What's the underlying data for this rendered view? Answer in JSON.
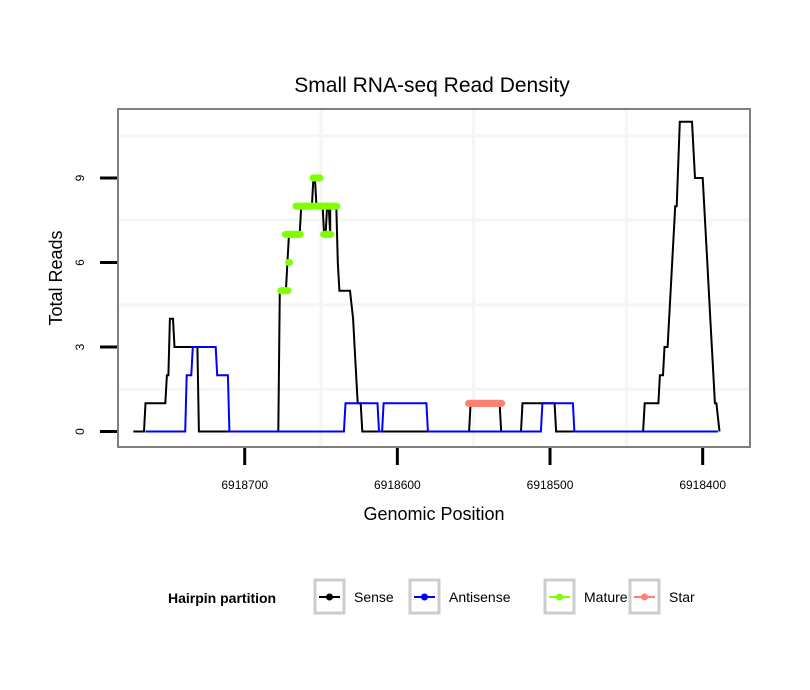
{
  "chart_data": {
    "type": "line",
    "title": "Small RNA-seq Read Density",
    "xlabel": "Genomic Position",
    "ylabel": "Total Reads",
    "x_reversed": true,
    "xlim": [
      6918783,
      6918369
    ],
    "ylim": [
      -0.55,
      11.45
    ],
    "x_ticks": [
      6918700,
      6918600,
      6918500,
      6918400
    ],
    "x_tick_labels": [
      "6918700",
      "6918600",
      "6918500",
      "6918400"
    ],
    "y_ticks": [
      0,
      3,
      6,
      9
    ],
    "y_tick_labels": [
      "0",
      "3",
      "6",
      "9"
    ],
    "x_minor_grid": [
      6918650,
      6918550,
      6918450
    ],
    "y_minor_grid": [
      1.5,
      4.5,
      7.5,
      10.5
    ],
    "grid": true,
    "legend": {
      "title": "Hairpin partition",
      "position": "bottom",
      "entries": [
        {
          "label": "Sense",
          "color": "#000000"
        },
        {
          "label": "Antisense",
          "color": "#0000ff"
        },
        {
          "label": "Mature",
          "color": "#7fff00"
        },
        {
          "label": "Star",
          "color": "#fa8072"
        }
      ]
    },
    "series": [
      {
        "name": "Sense",
        "color": "#000000",
        "style": "line",
        "points": [
          [
            6918773,
            0
          ],
          [
            6918766,
            0
          ],
          [
            6918765,
            1
          ],
          [
            6918752,
            1
          ],
          [
            6918751,
            2
          ],
          [
            6918750,
            2
          ],
          [
            6918749,
            4
          ],
          [
            6918747,
            4
          ],
          [
            6918746,
            3
          ],
          [
            6918731,
            3
          ],
          [
            6918730,
            0
          ],
          [
            6918678,
            0
          ],
          [
            6918677,
            5
          ],
          [
            6918673,
            5
          ],
          [
            6918672,
            6
          ],
          [
            6918671,
            7
          ],
          [
            6918664,
            7
          ],
          [
            6918663,
            8
          ],
          [
            6918656,
            8
          ],
          [
            6918655,
            9
          ],
          [
            6918654,
            9
          ],
          [
            6918653,
            8
          ],
          [
            6918649,
            8
          ],
          [
            6918648,
            7
          ],
          [
            6918647,
            7
          ],
          [
            6918646,
            8
          ],
          [
            6918645,
            8
          ],
          [
            6918644,
            7
          ],
          [
            6918644,
            8
          ],
          [
            6918640,
            8
          ],
          [
            6918639,
            6
          ],
          [
            6918638,
            5
          ],
          [
            6918631,
            5
          ],
          [
            6918629,
            4
          ],
          [
            6918628,
            3
          ],
          [
            6918626,
            1
          ],
          [
            6918624,
            1
          ],
          [
            6918623,
            0
          ],
          [
            6918553,
            0
          ],
          [
            6918552,
            1
          ],
          [
            6918533,
            1
          ],
          [
            6918532,
            0
          ],
          [
            6918519,
            0
          ],
          [
            6918518,
            1
          ],
          [
            6918497,
            1
          ],
          [
            6918496,
            0
          ],
          [
            6918439,
            0
          ],
          [
            6918438,
            1
          ],
          [
            6918429,
            1
          ],
          [
            6918428,
            2
          ],
          [
            6918426,
            2
          ],
          [
            6918425,
            3
          ],
          [
            6918423,
            3
          ],
          [
            6918419,
            7
          ],
          [
            6918418,
            8
          ],
          [
            6918417,
            8
          ],
          [
            6918415,
            11
          ],
          [
            6918407,
            11
          ],
          [
            6918405,
            9
          ],
          [
            6918400,
            9
          ],
          [
            6918397,
            6
          ],
          [
            6918395,
            4
          ],
          [
            6918393,
            2
          ],
          [
            6918392,
            1
          ],
          [
            6918391,
            1
          ],
          [
            6918389,
            0
          ]
        ]
      },
      {
        "name": "Antisense",
        "color": "#0000ff",
        "style": "line",
        "points": [
          [
            6918765,
            0
          ],
          [
            6918739,
            0
          ],
          [
            6918738,
            2
          ],
          [
            6918735,
            2
          ],
          [
            6918734,
            3
          ],
          [
            6918719,
            3
          ],
          [
            6918718,
            2
          ],
          [
            6918711,
            2
          ],
          [
            6918710,
            0
          ],
          [
            6918635,
            0
          ],
          [
            6918634,
            1
          ],
          [
            6918613,
            1
          ],
          [
            6918612,
            0
          ],
          [
            6918610,
            0
          ],
          [
            6918609,
            1
          ],
          [
            6918581,
            1
          ],
          [
            6918580,
            0
          ],
          [
            6918506,
            0
          ],
          [
            6918505,
            1
          ],
          [
            6918485,
            1
          ],
          [
            6918484,
            0
          ],
          [
            6918390,
            0
          ]
        ]
      },
      {
        "name": "Mature",
        "color": "#7fff00",
        "style": "points",
        "points": [
          [
            6918676,
            5
          ],
          [
            6918675,
            5
          ],
          [
            6918674,
            5
          ],
          [
            6918673,
            5
          ],
          [
            6918672,
            5
          ],
          [
            6918671,
            6
          ],
          [
            6918673,
            7
          ],
          [
            6918672,
            7
          ],
          [
            6918671,
            7
          ],
          [
            6918670,
            7
          ],
          [
            6918669,
            7
          ],
          [
            6918668,
            7
          ],
          [
            6918667,
            7
          ],
          [
            6918666,
            7
          ],
          [
            6918665,
            7
          ],
          [
            6918664,
            7
          ],
          [
            6918666,
            8
          ],
          [
            6918665,
            8
          ],
          [
            6918664,
            8
          ],
          [
            6918663,
            8
          ],
          [
            6918662,
            8
          ],
          [
            6918661,
            8
          ],
          [
            6918660,
            8
          ],
          [
            6918659,
            8
          ],
          [
            6918658,
            8
          ],
          [
            6918657,
            8
          ],
          [
            6918656,
            8
          ],
          [
            6918655,
            9
          ],
          [
            6918654,
            9
          ],
          [
            6918653,
            9
          ],
          [
            6918652,
            9
          ],
          [
            6918651,
            9
          ],
          [
            6918653,
            8
          ],
          [
            6918652,
            8
          ],
          [
            6918651,
            8
          ],
          [
            6918650,
            8
          ],
          [
            6918649,
            8
          ],
          [
            6918648,
            8
          ],
          [
            6918647,
            8
          ],
          [
            6918646,
            8
          ],
          [
            6918645,
            8
          ],
          [
            6918644,
            8
          ],
          [
            6918643,
            8
          ],
          [
            6918642,
            8
          ],
          [
            6918641,
            8
          ],
          [
            6918640,
            8
          ],
          [
            6918648,
            7
          ],
          [
            6918647,
            7
          ],
          [
            6918646,
            7
          ],
          [
            6918645,
            7
          ],
          [
            6918644,
            7
          ]
        ]
      },
      {
        "name": "Star",
        "color": "#fa8072",
        "style": "points",
        "points": [
          [
            6918553,
            1
          ],
          [
            6918552,
            1
          ],
          [
            6918551,
            1
          ],
          [
            6918550,
            1
          ],
          [
            6918549,
            1
          ],
          [
            6918548,
            1
          ],
          [
            6918547,
            1
          ],
          [
            6918546,
            1
          ],
          [
            6918545,
            1
          ],
          [
            6918544,
            1
          ],
          [
            6918543,
            1
          ],
          [
            6918542,
            1
          ],
          [
            6918541,
            1
          ],
          [
            6918540,
            1
          ],
          [
            6918539,
            1
          ],
          [
            6918538,
            1
          ],
          [
            6918537,
            1
          ],
          [
            6918536,
            1
          ],
          [
            6918535,
            1
          ],
          [
            6918534,
            1
          ],
          [
            6918533,
            1
          ],
          [
            6918532,
            1
          ]
        ]
      }
    ]
  }
}
